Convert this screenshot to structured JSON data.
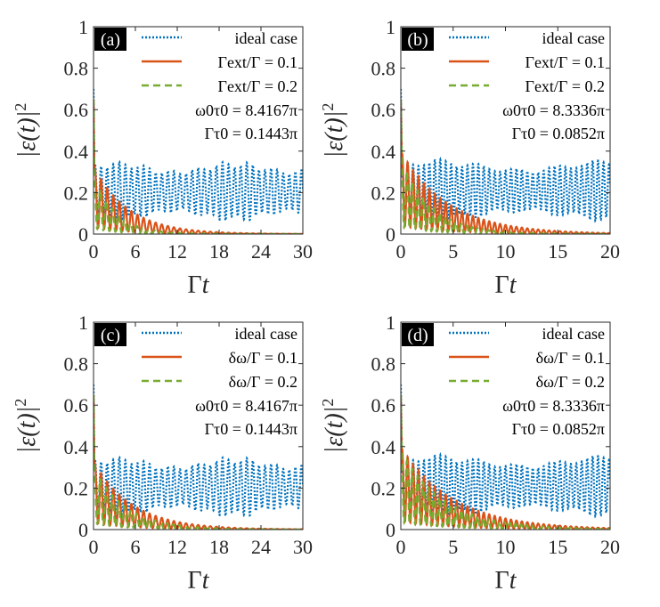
{
  "chart_data": [
    {
      "type": "line",
      "panel_label": "(a)",
      "xlabel_base": "Γ",
      "xlabel_var": "t",
      "ylabel_text": "|ε(t)|",
      "ylabel_sup": "2",
      "xlim": [
        0,
        30
      ],
      "ylim": [
        0,
        1
      ],
      "xticks": [
        0,
        6,
        12,
        18,
        24,
        30
      ],
      "yticks": [
        0,
        0.2,
        0.4,
        0.6,
        0.8,
        1
      ],
      "xtick_labels": [
        "0",
        "6",
        "12",
        "18",
        "24",
        "30"
      ],
      "ytick_labels": [
        "0",
        "0.2",
        "0.4",
        "0.6",
        "0.8",
        "1"
      ],
      "legend": [
        {
          "label": "ideal case",
          "color": "#0072BD",
          "style": "dotted"
        },
        {
          "label": "Γext/Γ = 0.1",
          "color": "#D95319",
          "style": "solid"
        },
        {
          "label": "Γext/Γ = 0.2",
          "color": "#77AC30",
          "style": "dashed"
        }
      ],
      "annotations": [
        "ω0τ0 = 8.4167π",
        "Γτ0 = 0.1443π"
      ],
      "series": {
        "ideal": {
          "period": 0.87,
          "min": 0.06,
          "max": 0.35
        },
        "loss1": {
          "period": 0.87,
          "peak": 0.33,
          "decay": 0.2
        },
        "loss2": {
          "period": 0.87,
          "peak": 0.29,
          "decay": 0.32
        }
      }
    },
    {
      "type": "line",
      "panel_label": "(b)",
      "xlabel_base": "Γ",
      "xlabel_var": "t",
      "ylabel_text": "|ε(t)|",
      "ylabel_sup": "2",
      "xlim": [
        0,
        20
      ],
      "ylim": [
        0,
        1
      ],
      "xticks": [
        0,
        5,
        10,
        15,
        20
      ],
      "yticks": [
        0,
        0.2,
        0.4,
        0.6,
        0.8,
        1
      ],
      "xtick_labels": [
        "0",
        "5",
        "10",
        "15",
        "20"
      ],
      "ytick_labels": [
        "0",
        "0.2",
        "0.4",
        "0.6",
        "0.8",
        "1"
      ],
      "legend": [
        {
          "label": "ideal case",
          "color": "#0072BD",
          "style": "dotted"
        },
        {
          "label": "Γext/Γ = 0.1",
          "color": "#D95319",
          "style": "solid"
        },
        {
          "label": "Γext/Γ = 0.2",
          "color": "#77AC30",
          "style": "dashed"
        }
      ],
      "annotations": [
        "ω0τ0 = 8.3336π",
        "Γτ0 = 0.0852π"
      ],
      "series": {
        "ideal": {
          "period": 0.52,
          "min": 0.06,
          "max": 0.36
        },
        "loss1": {
          "period": 0.52,
          "peak": 0.4,
          "decay": 0.22
        },
        "loss2": {
          "period": 0.52,
          "peak": 0.37,
          "decay": 0.35
        }
      }
    },
    {
      "type": "line",
      "panel_label": "(c)",
      "xlabel_base": "Γ",
      "xlabel_var": "t",
      "ylabel_text": "|ε(t)|",
      "ylabel_sup": "2",
      "xlim": [
        0,
        30
      ],
      "ylim": [
        0,
        1
      ],
      "xticks": [
        0,
        6,
        12,
        18,
        24,
        30
      ],
      "yticks": [
        0,
        0.2,
        0.4,
        0.6,
        0.8,
        1
      ],
      "xtick_labels": [
        "0",
        "6",
        "12",
        "18",
        "24",
        "30"
      ],
      "ytick_labels": [
        "0",
        "0.2",
        "0.4",
        "0.6",
        "0.8",
        "1"
      ],
      "legend": [
        {
          "label": "ideal case",
          "color": "#0072BD",
          "style": "dotted"
        },
        {
          "label": "δω/Γ = 0.1",
          "color": "#D95319",
          "style": "solid"
        },
        {
          "label": "δω/Γ = 0.2",
          "color": "#77AC30",
          "style": "dashed"
        }
      ],
      "annotations": [
        "ω0τ0 = 8.4167π",
        "Γτ0 = 0.1443π"
      ],
      "series": {
        "ideal": {
          "period": 0.87,
          "min": 0.06,
          "max": 0.35
        },
        "loss1": {
          "period": 0.87,
          "peak": 0.33,
          "decay": 0.18
        },
        "loss2": {
          "period": 0.87,
          "peak": 0.3,
          "decay": 0.22
        }
      }
    },
    {
      "type": "line",
      "panel_label": "(d)",
      "xlabel_base": "Γ",
      "xlabel_var": "t",
      "ylabel_text": "|ε(t)|",
      "ylabel_sup": "2",
      "xlim": [
        0,
        20
      ],
      "ylim": [
        0,
        1
      ],
      "xticks": [
        0,
        5,
        10,
        15,
        20
      ],
      "yticks": [
        0,
        0.2,
        0.4,
        0.6,
        0.8,
        1
      ],
      "xtick_labels": [
        "0",
        "5",
        "10",
        "15",
        "20"
      ],
      "ytick_labels": [
        "0",
        "0.2",
        "0.4",
        "0.6",
        "0.8",
        "1"
      ],
      "legend": [
        {
          "label": "ideal case",
          "color": "#0072BD",
          "style": "dotted"
        },
        {
          "label": "δω/Γ = 0.1",
          "color": "#D95319",
          "style": "solid"
        },
        {
          "label": "δω/Γ = 0.2",
          "color": "#77AC30",
          "style": "dashed"
        }
      ],
      "annotations": [
        "ω0τ0 = 8.3336π",
        "Γτ0 = 0.0852π"
      ],
      "series": {
        "ideal": {
          "period": 0.52,
          "min": 0.06,
          "max": 0.36
        },
        "loss1": {
          "period": 0.52,
          "peak": 0.4,
          "decay": 0.2
        },
        "loss2": {
          "period": 0.52,
          "peak": 0.38,
          "decay": 0.24
        }
      }
    }
  ]
}
